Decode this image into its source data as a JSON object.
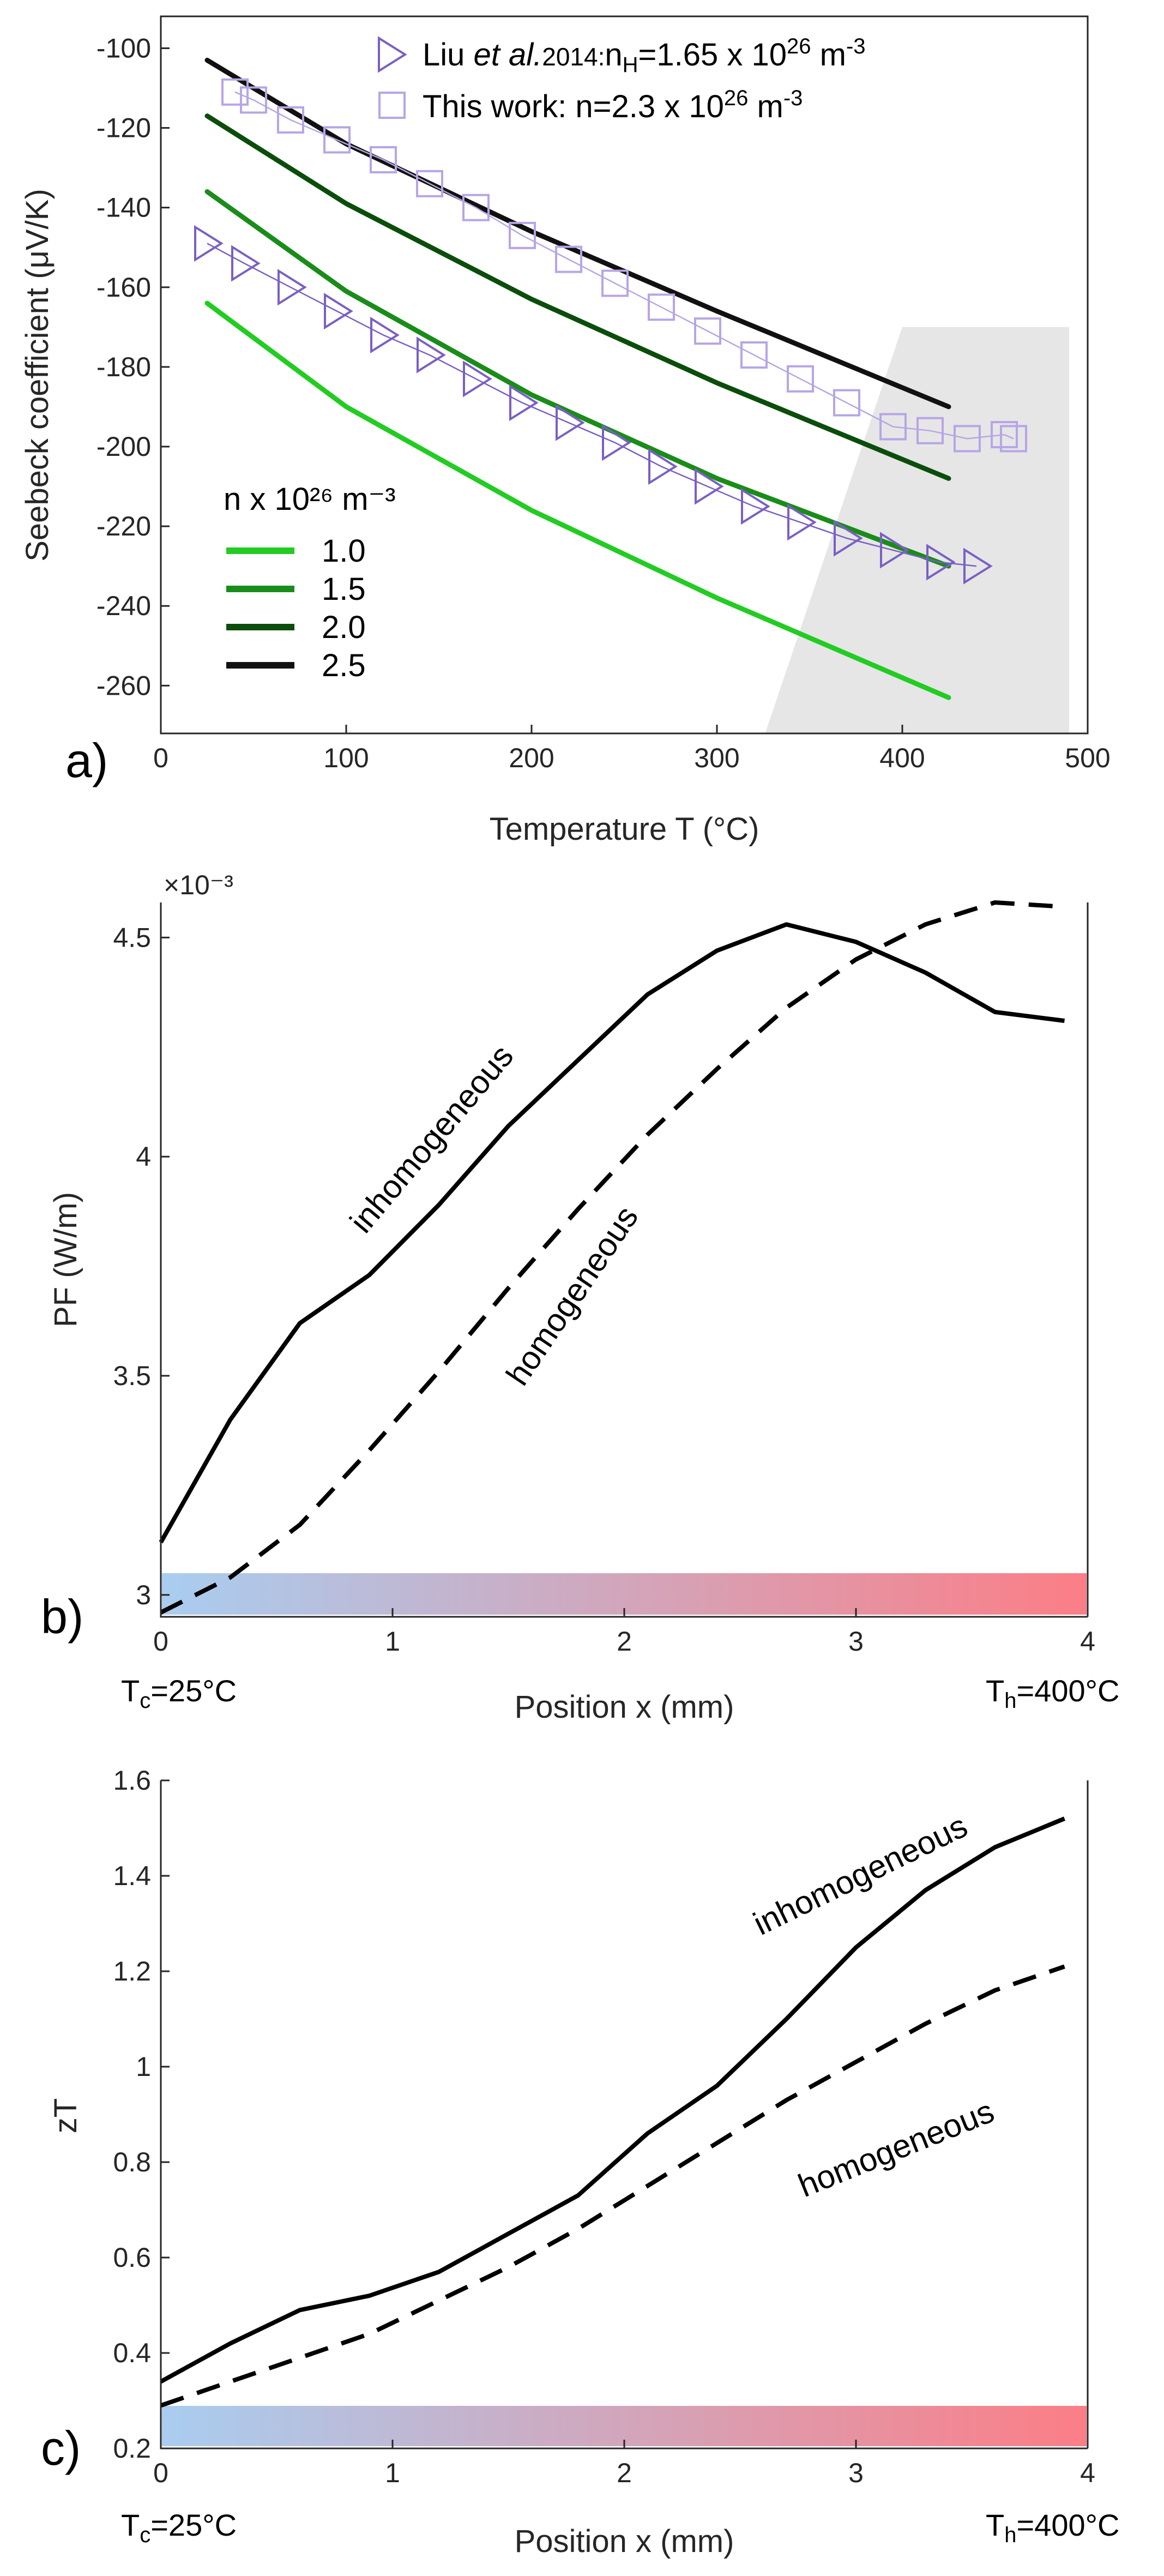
{
  "chart_data": [
    {
      "panel": "a)",
      "type": "line",
      "xlabel": "Temperature T (°C)",
      "ylabel": "Seebeck coefficient (μV/K)",
      "xlim": [
        0,
        500
      ],
      "ylim": [
        -272,
        -92
      ],
      "xticks": [
        0,
        100,
        200,
        300,
        400,
        500
      ],
      "yticks": [
        -100,
        -120,
        -140,
        -160,
        -180,
        -200,
        -220,
        -240,
        -260
      ],
      "legend_title": "n x 10²⁶ m⁻³",
      "series": [
        {
          "name": "1.0",
          "color": "#22cc22",
          "x": [
            25,
            100,
            200,
            300,
            425
          ],
          "y": [
            -164,
            -190,
            -216,
            -238,
            -263
          ]
        },
        {
          "name": "1.5",
          "color": "#1a8c1a",
          "x": [
            25,
            100,
            200,
            300,
            425
          ],
          "y": [
            -136,
            -161,
            -187,
            -208,
            -230
          ]
        },
        {
          "name": "2.0",
          "color": "#0b4d0b",
          "x": [
            25,
            100,
            200,
            300,
            425
          ],
          "y": [
            -117,
            -139,
            -163,
            -184,
            -208
          ]
        },
        {
          "name": "2.5",
          "color": "#111111",
          "x": [
            25,
            100,
            200,
            300,
            425
          ],
          "y": [
            -103,
            -124,
            -146,
            -166,
            -190
          ]
        }
      ],
      "markers": [
        {
          "name": "Liu et al. 2014: nH=1.65 x 10²⁶ m⁻³",
          "legend_prefix": "Liu ",
          "legend_italic": "et al.",
          "legend_year": "2014:",
          "legend_value": "n",
          "legend_sub": "H",
          "legend_rest": "=1.65 x 10",
          "legend_sup": "26",
          "legend_unit": " m",
          "legend_unit_sup": "-3",
          "symbol": "triangle-right",
          "color": "#7a5fc4",
          "x": [
            25,
            45,
            70,
            95,
            120,
            145,
            170,
            195,
            220,
            245,
            270,
            295,
            320,
            345,
            370,
            395,
            420,
            440
          ],
          "y": [
            -149,
            -154,
            -160,
            -166,
            -172,
            -177,
            -183,
            -189,
            -194,
            -199,
            -205,
            -210,
            -215,
            -219,
            -223,
            -226,
            -229,
            -230
          ]
        },
        {
          "name": "This work: n=2.3 x 10²⁶ m⁻³",
          "legend_text": "This work: n=2.3 x 10",
          "legend_sup": "26",
          "legend_unit": " m",
          "legend_unit_sup": "-3",
          "symbol": "square",
          "color": "#b7a5e6",
          "x": [
            40,
            50,
            70,
            95,
            120,
            145,
            170,
            195,
            220,
            245,
            270,
            295,
            320,
            345,
            370,
            395,
            415,
            435,
            455,
            460
          ],
          "y": [
            -111,
            -113,
            -118,
            -123,
            -128,
            -134,
            -140,
            -147,
            -153,
            -159,
            -165,
            -171,
            -177,
            -183,
            -189,
            -195,
            -196,
            -198,
            -197,
            -198
          ]
        }
      ]
    },
    {
      "panel": "b)",
      "type": "line",
      "xlabel": "Position x (mm)",
      "ylabel": "PF (W/m)",
      "xlim": [
        0,
        4
      ],
      "ylim": [
        2.95,
        4.58
      ],
      "xticks": [
        0,
        1,
        2,
        3,
        4
      ],
      "yticks": [
        3,
        3.5,
        4,
        4.5
      ],
      "ytick_labels": [
        "3",
        "3.5",
        "4",
        "4.5"
      ],
      "exponent_label": "×10⁻³",
      "series": [
        {
          "name": "inhomogeneous",
          "style": "solid",
          "x": [
            0,
            0.3,
            0.6,
            0.9,
            1.2,
            1.5,
            1.8,
            2.1,
            2.4,
            2.7,
            3.0,
            3.3,
            3.6,
            3.9
          ],
          "y": [
            3.12,
            3.4,
            3.62,
            3.73,
            3.89,
            4.07,
            4.22,
            4.37,
            4.47,
            4.53,
            4.49,
            4.42,
            4.33,
            4.31
          ]
        },
        {
          "name": "homogeneous",
          "style": "dashed",
          "x": [
            0,
            0.3,
            0.6,
            0.9,
            1.2,
            1.5,
            1.8,
            2.1,
            2.4,
            2.7,
            3.0,
            3.3,
            3.6,
            3.9
          ],
          "y": [
            2.96,
            3.04,
            3.16,
            3.33,
            3.51,
            3.7,
            3.88,
            4.05,
            4.2,
            4.34,
            4.45,
            4.53,
            4.58,
            4.57
          ]
        }
      ]
    },
    {
      "panel": "c)",
      "type": "line",
      "xlabel": "Position x (mm)",
      "ylabel": "zT",
      "xlim": [
        0,
        4
      ],
      "ylim": [
        0.2,
        1.6
      ],
      "xticks": [
        0,
        1,
        2,
        3,
        4
      ],
      "yticks": [
        0.2,
        0.4,
        0.6,
        0.8,
        1,
        1.2,
        1.4,
        1.6
      ],
      "ytick_labels": [
        "0.2",
        "0.4",
        "0.6",
        "0.8",
        "1",
        "1.2",
        "1.4",
        "1.6"
      ],
      "series": [
        {
          "name": "inhomogeneous",
          "style": "solid",
          "x": [
            0,
            0.3,
            0.6,
            0.9,
            1.2,
            1.5,
            1.8,
            2.1,
            2.4,
            2.7,
            3.0,
            3.3,
            3.6,
            3.9
          ],
          "y": [
            0.34,
            0.42,
            0.49,
            0.52,
            0.57,
            0.65,
            0.73,
            0.86,
            0.96,
            1.1,
            1.25,
            1.37,
            1.46,
            1.52
          ]
        },
        {
          "name": "homogeneous",
          "style": "dashed",
          "x": [
            0,
            0.3,
            0.6,
            0.9,
            1.2,
            1.5,
            1.8,
            2.1,
            2.4,
            2.7,
            3.0,
            3.3,
            3.6,
            3.9
          ],
          "y": [
            0.29,
            0.34,
            0.39,
            0.44,
            0.51,
            0.58,
            0.66,
            0.75,
            0.84,
            0.93,
            1.01,
            1.09,
            1.16,
            1.21
          ]
        }
      ]
    }
  ],
  "temperature_labels": {
    "cold_prefix": "T",
    "cold_sub": "c",
    "cold_rest": "=25°C",
    "hot_prefix": "T",
    "hot_sub": "h",
    "hot_rest": "=400°C"
  },
  "colors": {
    "gradient_cold": "#a9cdf0",
    "gradient_hot": "#fb7e86",
    "gray_region": "#e6e6e6",
    "axis": "#262626"
  }
}
